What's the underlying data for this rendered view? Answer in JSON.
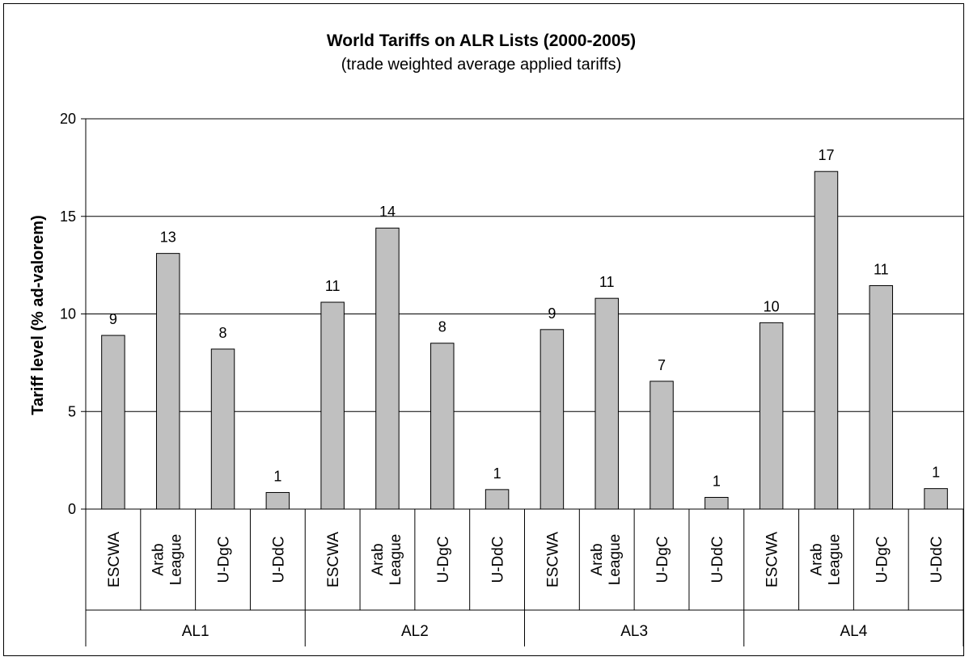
{
  "chart_data": {
    "type": "bar",
    "title": "World Tariffs on ALR Lists (2000-2005)",
    "subtitle": "(trade weighted average applied tariffs)",
    "ylabel": "Tariff level (% ad-valorem)",
    "xlabel": "",
    "ylim": [
      0,
      20
    ],
    "yticks": [
      "0",
      "5",
      "10",
      "15",
      "20"
    ],
    "grid": true,
    "groups": [
      {
        "name": "AL1",
        "bars": [
          {
            "category": "ESCWA",
            "value": 8.9,
            "label": "9"
          },
          {
            "category": "Arab League",
            "value": 13.1,
            "label": "13"
          },
          {
            "category": "U-DgC",
            "value": 8.2,
            "label": "8"
          },
          {
            "category": "U-DdC",
            "value": 0.85,
            "label": "1"
          }
        ]
      },
      {
        "name": "AL2",
        "bars": [
          {
            "category": "ESCWA",
            "value": 10.6,
            "label": "11"
          },
          {
            "category": "Arab League",
            "value": 14.4,
            "label": "14"
          },
          {
            "category": "U-DgC",
            "value": 8.5,
            "label": "8"
          },
          {
            "category": "U-DdC",
            "value": 1.0,
            "label": "1"
          }
        ]
      },
      {
        "name": "AL3",
        "bars": [
          {
            "category": "ESCWA",
            "value": 9.2,
            "label": "9"
          },
          {
            "category": "Arab League",
            "value": 10.8,
            "label": "11"
          },
          {
            "category": "U-DgC",
            "value": 6.55,
            "label": "7"
          },
          {
            "category": "U-DdC",
            "value": 0.6,
            "label": "1"
          }
        ]
      },
      {
        "name": "AL4",
        "bars": [
          {
            "category": "ESCWA",
            "value": 9.55,
            "label": "10"
          },
          {
            "category": "Arab League",
            "value": 17.3,
            "label": "17"
          },
          {
            "category": "U-DgC",
            "value": 11.45,
            "label": "11"
          },
          {
            "category": "U-DdC",
            "value": 1.05,
            "label": "1"
          }
        ]
      }
    ],
    "colors": {
      "bar_fill": "#c0c0c0",
      "bar_stroke": "#000000",
      "grid": "#000000"
    }
  }
}
